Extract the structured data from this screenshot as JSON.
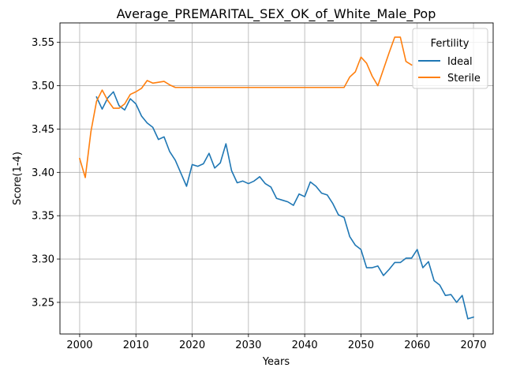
{
  "chart_data": {
    "type": "line",
    "title": "Average_PREMARITAL_SEX_OK_of_White_Male_Pop",
    "xlabel": "Years",
    "ylabel": "Score(1-4)",
    "xlim": [
      1996.5,
      2073.5
    ],
    "ylim": [
      3.2135,
      3.5725
    ],
    "xticks": [
      2000,
      2010,
      2020,
      2030,
      2040,
      2050,
      2060,
      2070
    ],
    "yticks": [
      3.25,
      3.3,
      3.35,
      3.4,
      3.45,
      3.5,
      3.55
    ],
    "ytick_labels": [
      "3.25",
      "3.30",
      "3.35",
      "3.40",
      "3.45",
      "3.50",
      "3.55"
    ],
    "grid": true,
    "legend": {
      "title": "Fertility",
      "placement": "top-right"
    },
    "series": [
      {
        "name": "Ideal",
        "color": "#1f77b4",
        "x": [
          2003,
          2004,
          2005,
          2006,
          2007,
          2008,
          2009,
          2010,
          2011,
          2012,
          2013,
          2014,
          2015,
          2016,
          2017,
          2018,
          2019,
          2020,
          2021,
          2022,
          2023,
          2024,
          2025,
          2026,
          2027,
          2028,
          2029,
          2030,
          2031,
          2032,
          2033,
          2034,
          2035,
          2036,
          2037,
          2038,
          2039,
          2040,
          2041,
          2042,
          2043,
          2044,
          2045,
          2046,
          2047,
          2048,
          2049,
          2050,
          2051,
          2052,
          2053,
          2054,
          2055,
          2056,
          2057,
          2058,
          2059,
          2060,
          2061,
          2062,
          2063,
          2064,
          2065,
          2066,
          2067,
          2068,
          2069,
          2070
        ],
        "y": [
          3.487,
          3.473,
          3.486,
          3.493,
          3.477,
          3.472,
          3.485,
          3.479,
          3.465,
          3.457,
          3.452,
          3.438,
          3.441,
          3.424,
          3.414,
          3.399,
          3.384,
          3.409,
          3.407,
          3.41,
          3.422,
          3.405,
          3.411,
          3.433,
          3.402,
          3.388,
          3.39,
          3.387,
          3.39,
          3.395,
          3.387,
          3.383,
          3.37,
          3.368,
          3.366,
          3.362,
          3.375,
          3.372,
          3.389,
          3.384,
          3.376,
          3.374,
          3.364,
          3.351,
          3.348,
          3.326,
          3.316,
          3.311,
          3.29,
          3.29,
          3.292,
          3.281,
          3.288,
          3.296,
          3.296,
          3.301,
          3.301,
          3.311,
          3.29,
          3.297,
          3.275,
          3.27,
          3.258,
          3.259,
          3.25,
          3.258,
          3.231,
          3.233
        ]
      },
      {
        "name": "Sterile",
        "color": "#ff7f0e",
        "x": [
          2000,
          2001,
          2002,
          2003,
          2004,
          2005,
          2006,
          2007,
          2008,
          2009,
          2010,
          2011,
          2012,
          2013,
          2014,
          2015,
          2016,
          2017,
          2018,
          2019,
          2020,
          2021,
          2022,
          2023,
          2024,
          2025,
          2026,
          2027,
          2028,
          2029,
          2030,
          2031,
          2032,
          2033,
          2034,
          2035,
          2036,
          2037,
          2038,
          2039,
          2040,
          2041,
          2042,
          2043,
          2044,
          2045,
          2046,
          2047,
          2048,
          2049,
          2050,
          2051,
          2052,
          2053,
          2054,
          2055,
          2056,
          2057,
          2058,
          2059
        ],
        "y": [
          3.416,
          3.394,
          3.447,
          3.482,
          3.495,
          3.483,
          3.474,
          3.474,
          3.479,
          3.49,
          3.493,
          3.497,
          3.506,
          3.503,
          3.504,
          3.505,
          3.501,
          3.498,
          3.498,
          3.498,
          3.498,
          3.498,
          3.498,
          3.498,
          3.498,
          3.498,
          3.498,
          3.498,
          3.498,
          3.498,
          3.498,
          3.498,
          3.498,
          3.498,
          3.498,
          3.498,
          3.498,
          3.498,
          3.498,
          3.498,
          3.498,
          3.498,
          3.498,
          3.498,
          3.498,
          3.498,
          3.498,
          3.498,
          3.51,
          3.516,
          3.533,
          3.526,
          3.511,
          3.5,
          3.519,
          3.538,
          3.556,
          3.556,
          3.528,
          3.524
        ]
      }
    ]
  }
}
